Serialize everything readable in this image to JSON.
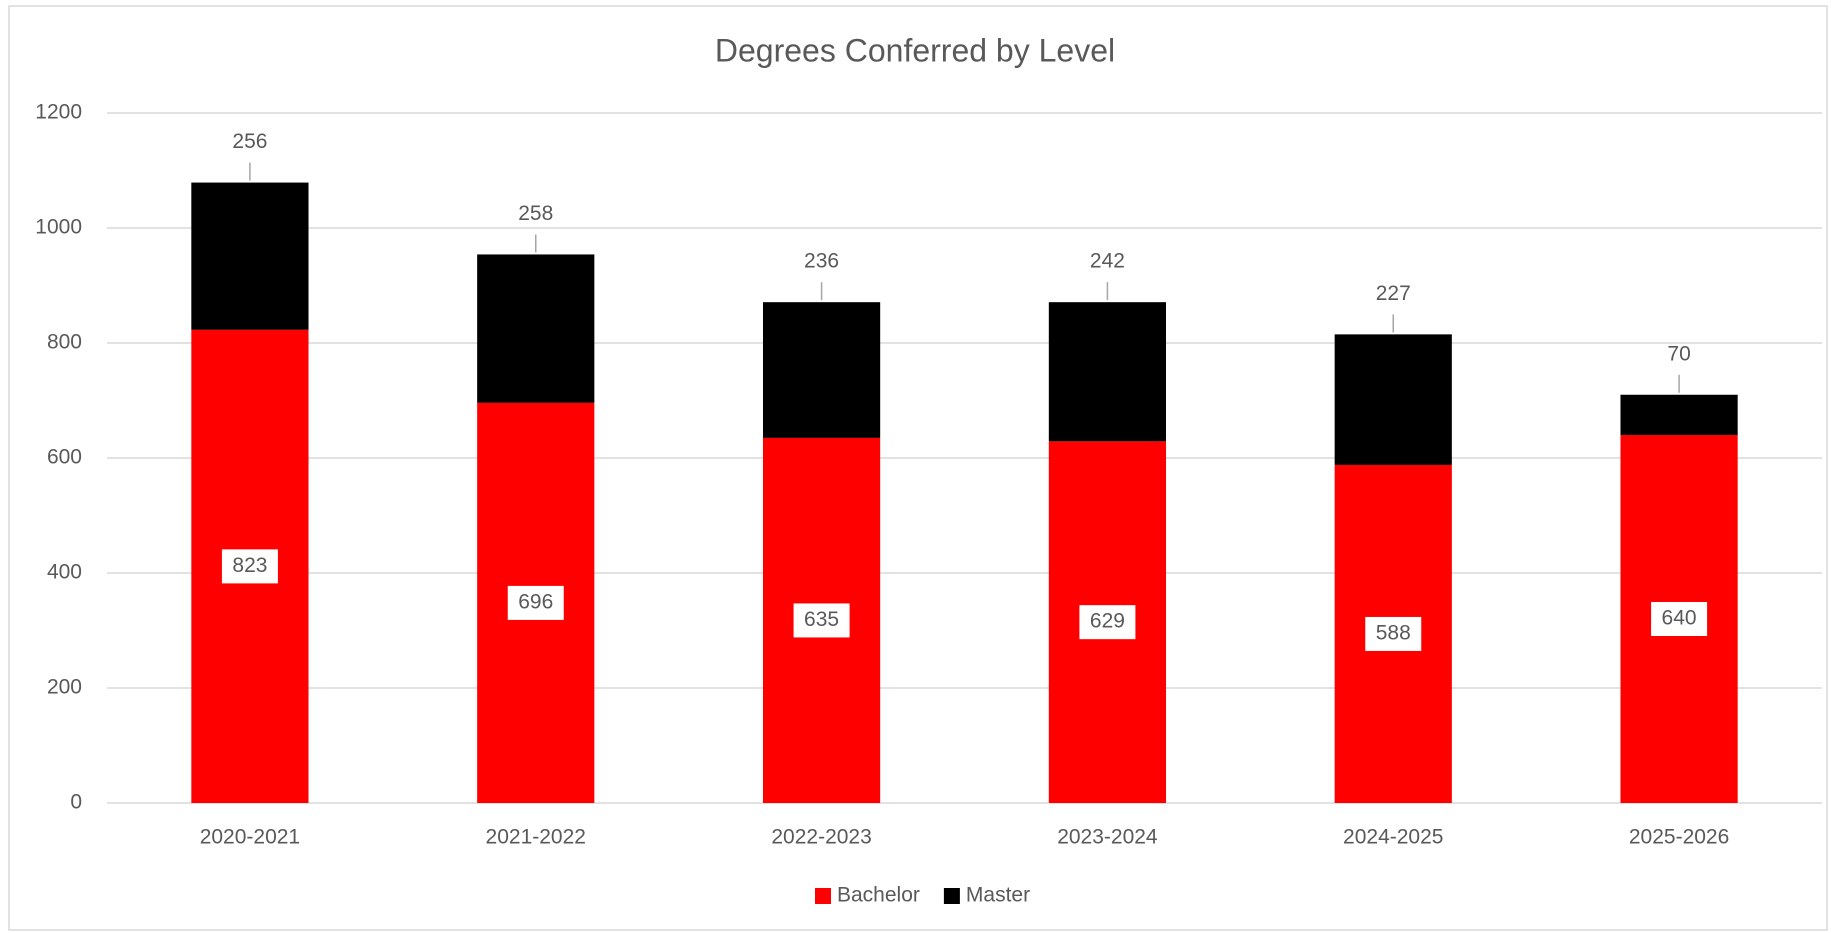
{
  "chart_data": {
    "type": "stacked_bar",
    "title": "Degrees Conferred by Level",
    "categories": [
      "2020-2021",
      "2021-2022",
      "2022-2023",
      "2023-2024",
      "2024-2025",
      "2025-2026"
    ],
    "series": [
      {
        "name": "Bachelor",
        "color": "#ff0000",
        "values": [
          823,
          696,
          635,
          629,
          588,
          640
        ]
      },
      {
        "name": "Master",
        "color": "#000000",
        "values": [
          256,
          258,
          236,
          242,
          227,
          70
        ]
      }
    ],
    "ylim": [
      0,
      1200
    ],
    "yticks": [
      0,
      200,
      400,
      600,
      800,
      1000,
      1200
    ],
    "grid": true,
    "legend": "bottom"
  }
}
